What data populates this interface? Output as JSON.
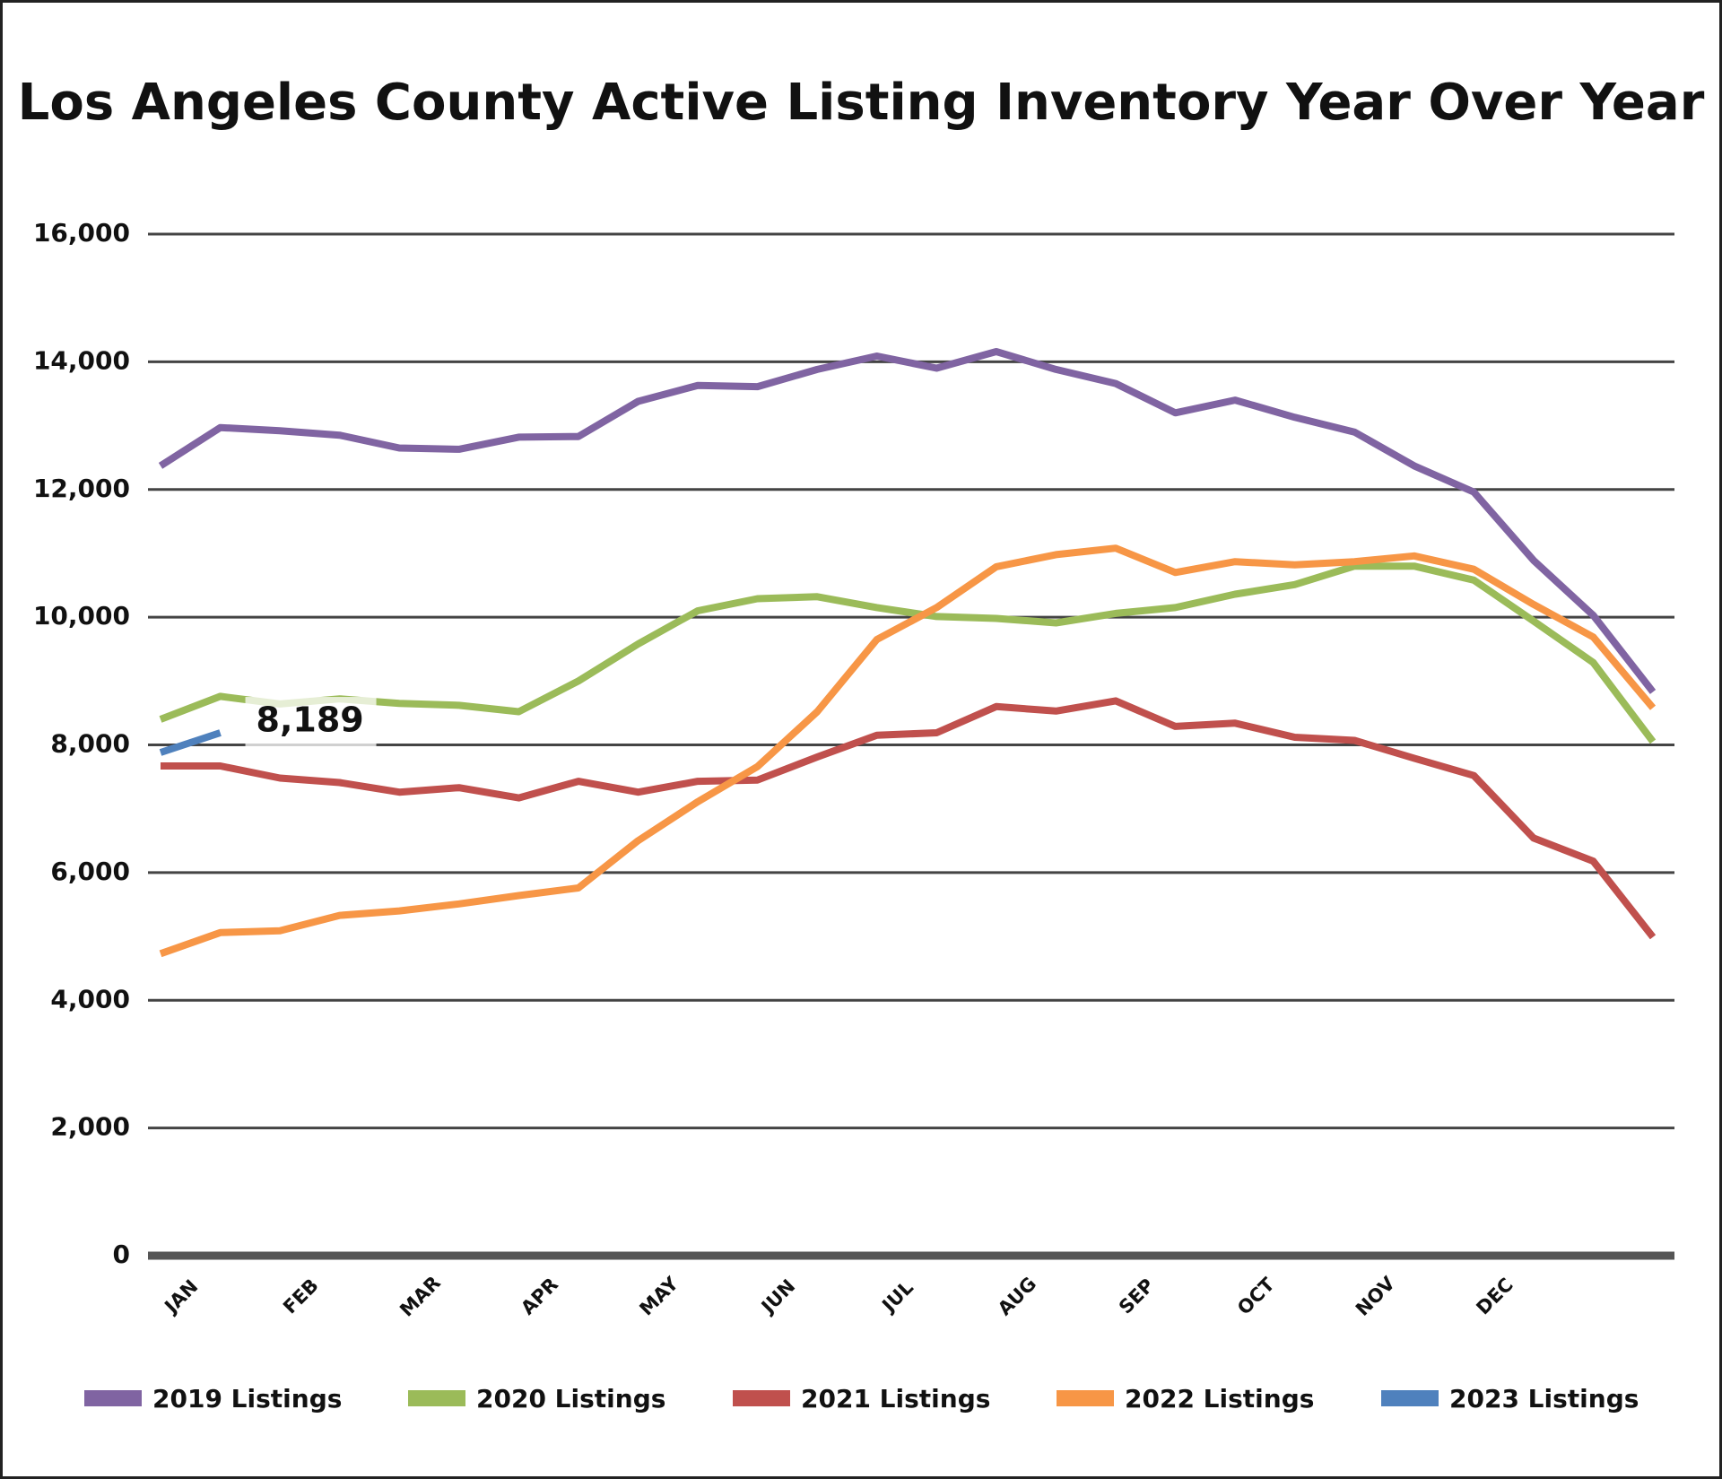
{
  "chart_data": {
    "type": "line",
    "title": "Los Angeles County Active Listing Inventory Year Over Year",
    "categories": [
      "JAN",
      null,
      "FEB",
      null,
      "MAR",
      null,
      "APR",
      null,
      "MAY",
      null,
      "JUN",
      null,
      "JUL",
      null,
      "AUG",
      null,
      "SEP",
      null,
      "OCT",
      null,
      "NOV",
      null,
      "DEC",
      null,
      null,
      null
    ],
    "ylim": [
      0,
      16000
    ],
    "yticks": [
      0,
      {
        "value": 2000,
        "label": "2,000"
      },
      {
        "value": 4000,
        "label": "4,000"
      },
      {
        "value": 6000,
        "label": "6,000"
      },
      {
        "value": 8000,
        "label": "8,000"
      },
      {
        "value": 10000,
        "label": "10,000"
      },
      {
        "value": 12000,
        "label": "12,000"
      },
      {
        "value": 14000,
        "label": "14,000"
      },
      {
        "value": 16000,
        "label": "16,000"
      }
    ],
    "grid": true,
    "legend": "bottom",
    "series": [
      {
        "name": "2019 Listings",
        "color": "#8064a2",
        "values": [
          12370,
          12970,
          12920,
          12850,
          12650,
          12630,
          12820,
          12830,
          13380,
          13630,
          13610,
          13880,
          14090,
          13900,
          14160,
          13880,
          13660,
          13200,
          13400,
          13130,
          12900,
          12370,
          11960,
          10890,
          10030,
          8830
        ]
      },
      {
        "name": "2020 Listings",
        "color": "#9bbb59",
        "values": [
          8400,
          8760,
          8640,
          8720,
          8650,
          8620,
          8520,
          9000,
          9580,
          10100,
          10290,
          10320,
          10150,
          10010,
          9980,
          9910,
          10060,
          10150,
          10360,
          10510,
          10800,
          10800,
          10580,
          9940,
          9290,
          8050
        ]
      },
      {
        "name": "2021 Listings",
        "color": "#c0504d",
        "values": [
          7670,
          7670,
          7480,
          7410,
          7260,
          7330,
          7170,
          7430,
          7260,
          7430,
          7450,
          7810,
          8150,
          8190,
          8600,
          8530,
          8690,
          8290,
          8340,
          8120,
          8070,
          7790,
          7520,
          6540,
          6180,
          4990
        ]
      },
      {
        "name": "2022 Listings",
        "color": "#f79646",
        "values": [
          4730,
          5060,
          5090,
          5330,
          5400,
          5510,
          5640,
          5760,
          6500,
          7110,
          7660,
          8520,
          9650,
          10150,
          10790,
          10980,
          11080,
          10700,
          10870,
          10820,
          10870,
          10960,
          10750,
          10200,
          9690,
          8580
        ]
      },
      {
        "name": "2023 Listings",
        "color": "#4f81bd",
        "values": [
          7880,
          8189,
          null,
          null,
          null,
          null,
          null,
          null,
          null,
          null,
          null,
          null,
          null,
          null,
          null,
          null,
          null,
          null,
          null,
          null,
          null,
          null,
          null,
          null,
          null,
          null
        ],
        "value_labels": [
          null,
          "8,189",
          null,
          null,
          null,
          null,
          null,
          null,
          null,
          null,
          null,
          null,
          null,
          null,
          null,
          null,
          null,
          null,
          null,
          null,
          null,
          null,
          null,
          null,
          null,
          null
        ]
      }
    ]
  }
}
